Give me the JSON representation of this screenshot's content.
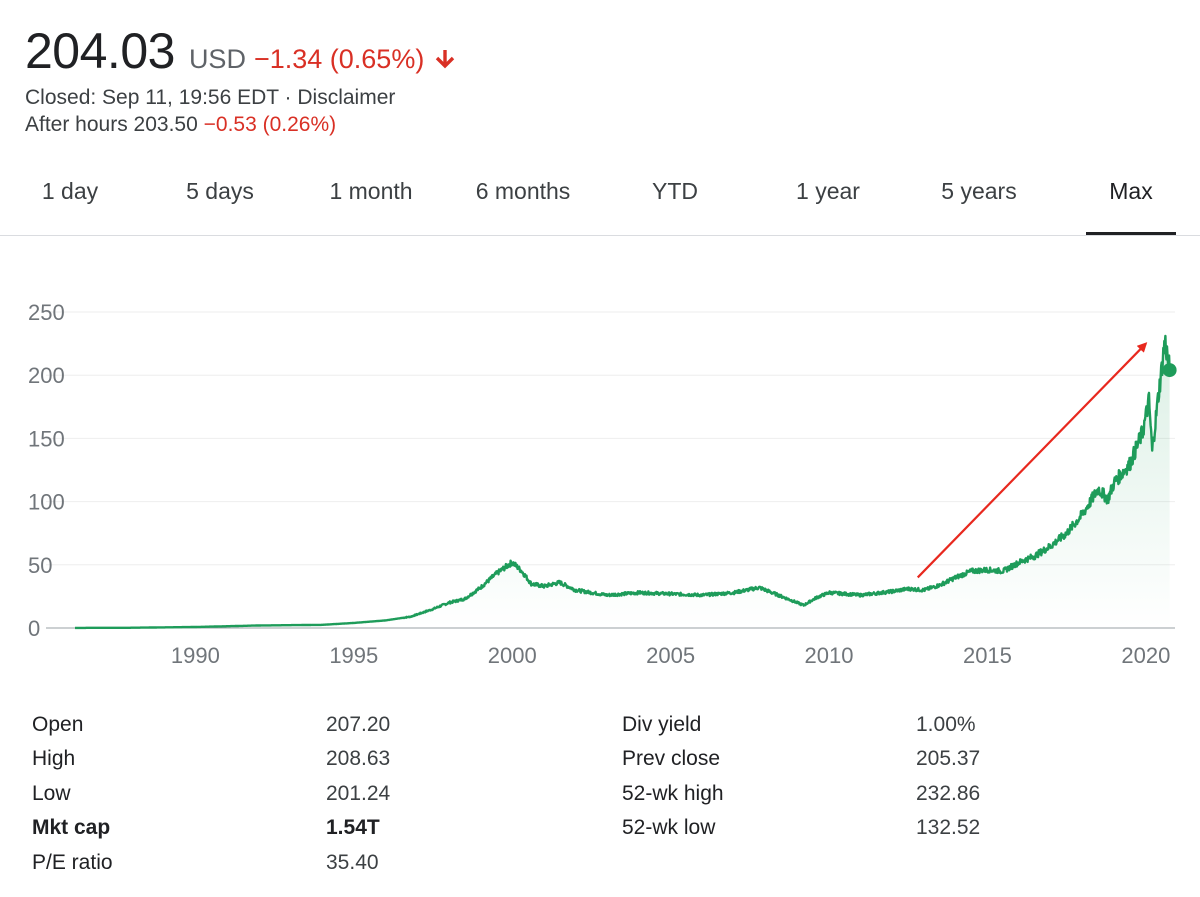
{
  "quote": {
    "price": "204.03",
    "currency": "USD",
    "change": "−1.34 (0.65%)",
    "closed_line": "Closed: Sep 11, 19:56 EDT · Disclaimer",
    "after_hours_label": "After hours 203.50",
    "after_hours_change": "−0.53 (0.26%)",
    "direction_icon": "arrow-down-icon"
  },
  "tabs": [
    "1 day",
    "5 days",
    "1 month",
    "6 months",
    "YTD",
    "1 year",
    "5 years",
    "Max"
  ],
  "active_tab": "Max",
  "colors": {
    "line": "#1e9c5a",
    "negative": "#d93025",
    "annotation_arrow": "#e8281e",
    "text": "#202124"
  },
  "chart_data": {
    "type": "area",
    "title": "",
    "xlabel": "",
    "ylabel": "",
    "ylim": [
      0,
      250
    ],
    "y_ticks": [
      "0",
      "50",
      "100",
      "150",
      "200",
      "250"
    ],
    "x_ticks": [
      "1990",
      "1995",
      "2000",
      "2005",
      "2010",
      "2015",
      "2020"
    ],
    "grid": true,
    "series": [
      {
        "x": [
          1986.2,
          1988,
          1990,
          1992,
          1994,
          1995,
          1996,
          1996.8,
          1997.5,
          1998,
          1998.5,
          1999,
          1999.5,
          2000,
          2000.3,
          2000.6,
          2001,
          2001.5,
          2002,
          2002.5,
          2003,
          2004,
          2005,
          2006,
          2007,
          2007.8,
          2008.5,
          2009.2,
          2009.6,
          2010,
          2010.5,
          2011,
          2012,
          2012.5,
          2013,
          2013.5,
          2014,
          2014.5,
          2015,
          2015.5,
          2016,
          2016.5,
          2017,
          2017.5,
          2018,
          2018.5,
          2018.8,
          2019,
          2019.5,
          2019.9,
          2020.1,
          2020.2,
          2020.4,
          2020.5,
          2020.6,
          2020.7,
          2020.75
        ],
        "y": [
          0.1,
          0.2,
          0.8,
          2,
          2.5,
          4,
          6,
          9,
          15,
          20,
          23,
          32,
          43,
          52,
          45,
          35,
          33,
          36,
          30,
          28,
          26,
          28,
          27,
          26,
          28,
          32,
          25,
          18,
          24,
          28,
          27,
          26,
          29,
          31,
          30,
          34,
          40,
          45,
          46,
          45,
          52,
          57,
          65,
          75,
          90,
          110,
          102,
          115,
          130,
          155,
          180,
          140,
          185,
          205,
          228,
          212,
          204.03
        ]
      }
    ],
    "annotation": {
      "type": "arrow",
      "from": [
        2012.8,
        40
      ],
      "to": [
        2020.0,
        225
      ]
    }
  },
  "stats": {
    "left": [
      {
        "label": "Open",
        "value": "207.20",
        "bold": false
      },
      {
        "label": "High",
        "value": "208.63",
        "bold": false
      },
      {
        "label": "Low",
        "value": "201.24",
        "bold": false
      },
      {
        "label": "Mkt cap",
        "value": "1.54T",
        "bold": true
      },
      {
        "label": "P/E ratio",
        "value": "35.40",
        "bold": false
      }
    ],
    "right": [
      {
        "label": "Div yield",
        "value": "1.00%"
      },
      {
        "label": "Prev close",
        "value": "205.37"
      },
      {
        "label": "52-wk high",
        "value": "232.86"
      },
      {
        "label": "52-wk low",
        "value": "132.52"
      }
    ]
  }
}
